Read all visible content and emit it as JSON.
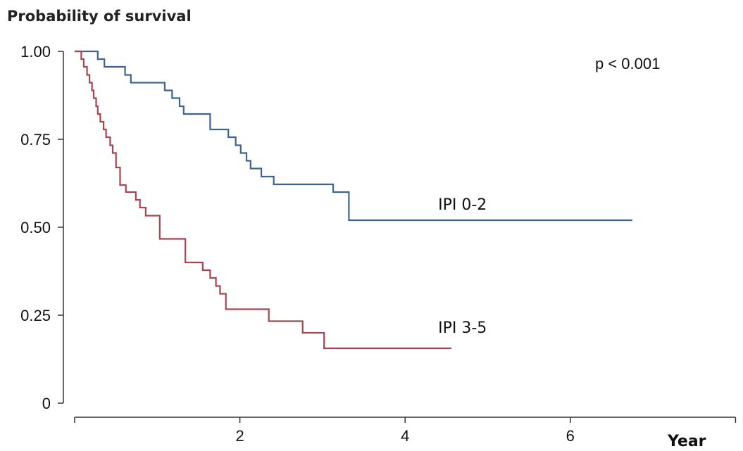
{
  "chart_data": {
    "type": "line",
    "step": true,
    "ylabel": "Probability of survival",
    "xlabel": "Year",
    "xlim": [
      0,
      8
    ],
    "ylim": [
      0,
      1
    ],
    "xticks": [
      0,
      2,
      4,
      6,
      8
    ],
    "xtick_labels": [
      "",
      "2",
      "4",
      "6",
      ""
    ],
    "yticks": [
      0,
      0.25,
      0.5,
      0.75,
      1.0
    ],
    "ytick_labels": [
      "0",
      "0.25",
      "0.50",
      "0.75",
      "1.00"
    ],
    "grid": false,
    "annotations": [
      {
        "text": "p < 0.001",
        "x": 6.3,
        "y": 0.95
      }
    ],
    "series": [
      {
        "name": "IPI 0-2",
        "color": "#3d6490",
        "label_pos": [
          4.4,
          0.55
        ],
        "x": [
          0.0,
          0.22,
          0.28,
          0.36,
          0.61,
          0.68,
          1.09,
          1.18,
          1.27,
          1.32,
          1.64,
          1.86,
          1.95,
          2.01,
          2.08,
          2.13,
          2.26,
          2.41,
          3.13,
          3.32,
          6.75
        ],
        "y": [
          1.0,
          1.0,
          0.978,
          0.956,
          0.933,
          0.911,
          0.889,
          0.867,
          0.844,
          0.822,
          0.778,
          0.756,
          0.733,
          0.711,
          0.689,
          0.667,
          0.644,
          0.622,
          0.6,
          0.52,
          0.52
        ]
      },
      {
        "name": "IPI 3-5",
        "color": "#a8444e",
        "label_pos": [
          4.4,
          0.2
        ],
        "x": [
          0.0,
          0.08,
          0.11,
          0.15,
          0.18,
          0.21,
          0.23,
          0.26,
          0.28,
          0.31,
          0.35,
          0.38,
          0.43,
          0.46,
          0.5,
          0.55,
          0.62,
          0.74,
          0.79,
          0.86,
          1.03,
          1.34,
          1.55,
          1.64,
          1.71,
          1.76,
          1.83,
          1.97,
          2.35,
          2.76,
          3.02,
          4.56
        ],
        "y": [
          1.0,
          0.978,
          0.956,
          0.933,
          0.911,
          0.889,
          0.867,
          0.844,
          0.822,
          0.8,
          0.778,
          0.756,
          0.733,
          0.711,
          0.67,
          0.62,
          0.6,
          0.578,
          0.556,
          0.533,
          0.467,
          0.4,
          0.378,
          0.356,
          0.333,
          0.311,
          0.267,
          0.267,
          0.233,
          0.2,
          0.156,
          0.156
        ]
      }
    ]
  }
}
